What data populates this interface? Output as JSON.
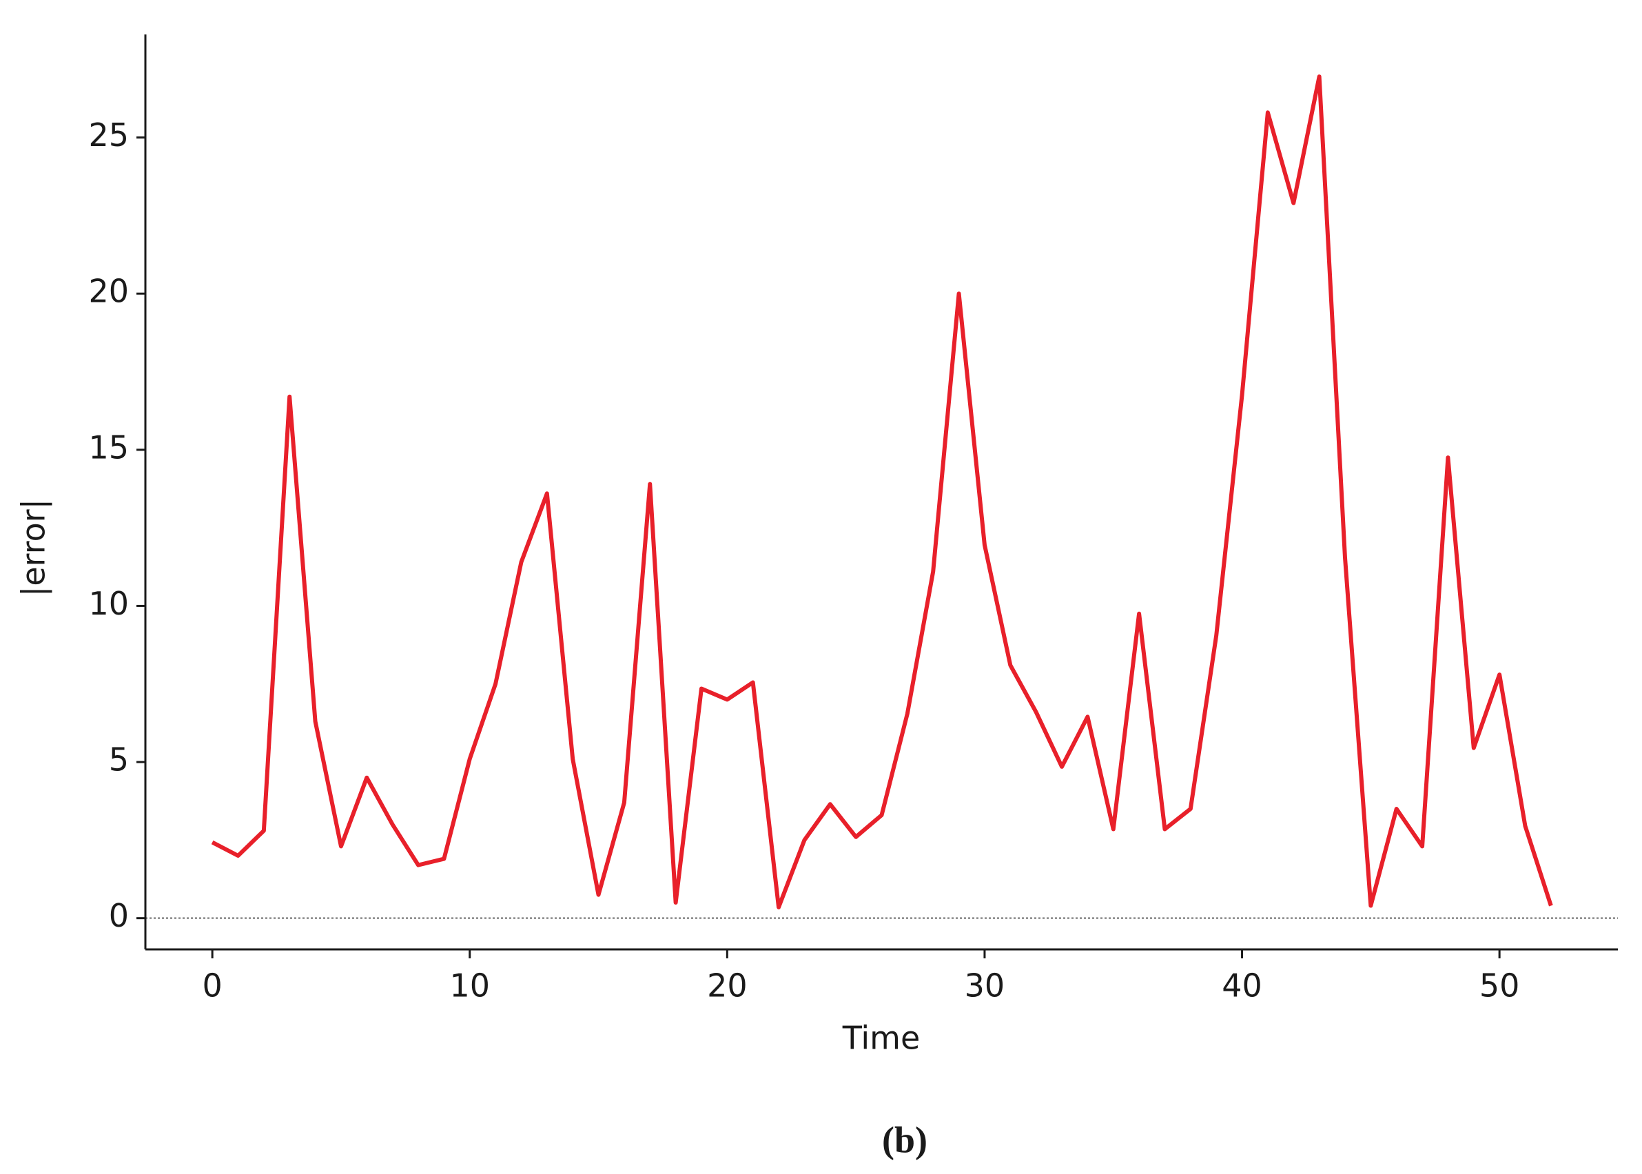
{
  "chart_data": {
    "type": "line",
    "caption": "(b)",
    "x_label": "Time",
    "y_label": "|error|",
    "x": [
      0,
      1,
      2,
      3,
      4,
      5,
      6,
      7,
      8,
      9,
      10,
      11,
      12,
      13,
      14,
      15,
      16,
      17,
      18,
      19,
      20,
      21,
      22,
      23,
      24,
      25,
      26,
      27,
      28,
      29,
      30,
      31,
      32,
      33,
      34,
      35,
      36,
      37,
      38,
      39,
      40,
      41,
      42,
      43,
      44,
      45,
      46,
      47,
      48,
      49,
      50,
      51,
      52
    ],
    "series": [
      {
        "name": "|error|",
        "color": "#e8202a",
        "values": [
          2.43,
          2.0,
          2.8,
          16.7,
          6.3,
          2.3,
          4.5,
          3.0,
          1.7,
          1.9,
          5.1,
          7.5,
          11.4,
          13.6,
          5.1,
          0.75,
          3.7,
          13.9,
          0.5,
          7.35,
          7.0,
          7.55,
          0.35,
          2.5,
          3.65,
          2.6,
          3.3,
          6.55,
          11.1,
          20.0,
          11.95,
          8.1,
          6.6,
          4.85,
          6.45,
          2.85,
          9.75,
          2.85,
          3.5,
          9.05,
          16.75,
          25.8,
          22.9,
          26.95,
          11.55,
          0.4,
          3.5,
          2.3,
          14.75,
          5.45,
          7.8,
          2.95,
          0.4
        ]
      }
    ],
    "xlim": [
      -2.6,
      54.6
    ],
    "xticks": [
      0,
      10,
      20,
      30,
      40,
      50
    ],
    "ylim": [
      -1.0,
      28.3
    ],
    "yticks": [
      0,
      5,
      10,
      15,
      20,
      25
    ],
    "reference_line": 0,
    "grid": false
  }
}
